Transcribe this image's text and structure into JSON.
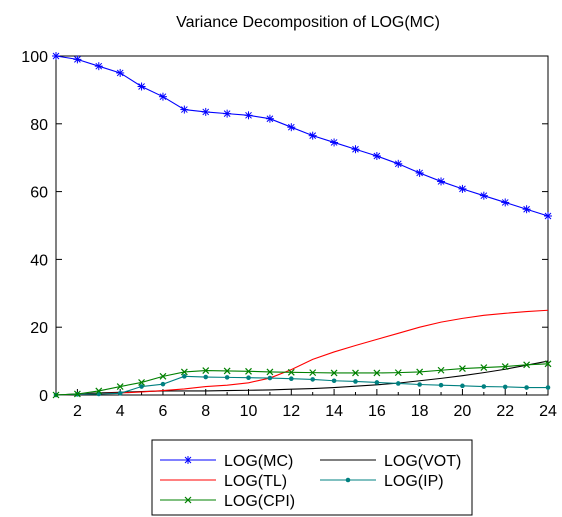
{
  "chart_data": {
    "type": "line",
    "title": "Variance Decomposition of LOG(MC)",
    "xlabel": "",
    "ylabel": "",
    "x": [
      1,
      2,
      3,
      4,
      5,
      6,
      7,
      8,
      9,
      10,
      11,
      12,
      13,
      14,
      15,
      16,
      17,
      18,
      19,
      20,
      21,
      22,
      23,
      24
    ],
    "x_ticks": [
      2,
      4,
      6,
      8,
      10,
      12,
      14,
      16,
      18,
      20,
      22,
      24
    ],
    "xlim": [
      1,
      24
    ],
    "ylim": [
      0,
      100
    ],
    "y_ticks": [
      0,
      20,
      40,
      60,
      80,
      100
    ],
    "grid": false,
    "legend_position": "bottom",
    "series": [
      {
        "name": "LOG(MC)",
        "color": "#0000ff",
        "marker": "asterisk",
        "values": [
          100,
          99,
          97,
          95,
          91,
          88,
          84.2,
          83.5,
          83,
          82.5,
          81.5,
          79,
          76.5,
          74.5,
          72.5,
          70.5,
          68.2,
          65.5,
          63,
          60.8,
          58.8,
          56.8,
          54.8,
          52.8
        ]
      },
      {
        "name": "LOG(VOT)",
        "color": "#000000",
        "marker": "none",
        "values": [
          0,
          0.3,
          0.6,
          0.8,
          1,
          1.2,
          1.2,
          1.2,
          1.3,
          1.4,
          1.5,
          1.7,
          1.9,
          2.2,
          2.6,
          3,
          3.5,
          4.2,
          4.9,
          5.7,
          6.6,
          7.6,
          8.8,
          10
        ]
      },
      {
        "name": "LOG(TL)",
        "color": "#ff0000",
        "marker": "none",
        "values": [
          0,
          0.2,
          0.4,
          0.6,
          0.9,
          1.3,
          1.8,
          2.5,
          2.9,
          3.6,
          5,
          7.5,
          10.5,
          12.7,
          14.6,
          16.4,
          18.2,
          20,
          21.5,
          22.6,
          23.5,
          24.1,
          24.6,
          25
        ]
      },
      {
        "name": "LOG(IP)",
        "color": "#008080",
        "marker": "dot",
        "values": [
          0,
          0.2,
          0.3,
          0.5,
          2.5,
          3.2,
          5.5,
          5.3,
          5.2,
          5.1,
          5,
          4.8,
          4.6,
          4.2,
          4,
          3.7,
          3.4,
          3.1,
          2.9,
          2.7,
          2.5,
          2.4,
          2.2,
          2.2
        ]
      },
      {
        "name": "LOG(CPI)",
        "color": "#008000",
        "marker": "x",
        "values": [
          0,
          0.3,
          1.2,
          2.5,
          3.7,
          5.5,
          6.8,
          7.2,
          7.1,
          7,
          6.8,
          6.7,
          6.6,
          6.5,
          6.5,
          6.5,
          6.6,
          6.8,
          7.3,
          7.8,
          8.1,
          8.4,
          8.9,
          9.2
        ]
      }
    ]
  }
}
